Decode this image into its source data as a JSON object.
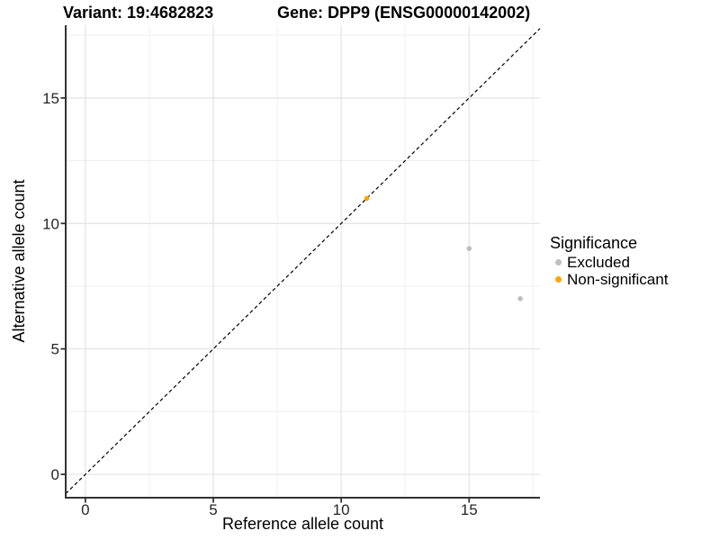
{
  "header": {
    "variant_title": "Variant: 19:4682823",
    "gene_title": "Gene: DPP9 (ENSG00000142002)"
  },
  "axes": {
    "x_label": "Reference allele count",
    "y_label": "Alternative allele count"
  },
  "legend": {
    "title": "Significance",
    "items": [
      {
        "label": "Excluded",
        "color": "#BEBEBE"
      },
      {
        "label": "Non-significant",
        "color": "#FFA500"
      }
    ]
  },
  "chart_data": {
    "type": "scatter",
    "title": "Variant: 19:4682823 / Gene: DPP9 (ENSG00000142002)",
    "xlabel": "Reference allele count",
    "ylabel": "Alternative allele count",
    "xlim": [
      -0.77,
      17.77
    ],
    "ylim": [
      -0.93,
      17.9
    ],
    "x_ticks": [
      0,
      5,
      10,
      15
    ],
    "y_ticks": [
      0,
      5,
      10,
      15
    ],
    "x_minor_ticks": [
      2.5,
      7.5,
      12.5,
      17.5
    ],
    "y_minor_ticks": [
      2.5,
      7.5,
      12.5,
      17.5
    ],
    "grid": "major+minor",
    "legend_position": "right",
    "legend_title": "Significance",
    "identity_line": {
      "equation": "y = x",
      "style": "dashed",
      "color": "#000000"
    },
    "series": [
      {
        "name": "Excluded",
        "color": "#BEBEBE",
        "points": [
          [
            15,
            9
          ],
          [
            17,
            7
          ]
        ]
      },
      {
        "name": "Non-significant",
        "color": "#FFA500",
        "points": [
          [
            11,
            11
          ]
        ]
      }
    ]
  },
  "style": {
    "grid_major_color": "#E3E3E3",
    "grid_minor_color": "#EFEFEF",
    "axis_line_color": "#333333",
    "tick_color": "#333333",
    "tick_label_color": "#262626",
    "point_radius": 2.8
  }
}
